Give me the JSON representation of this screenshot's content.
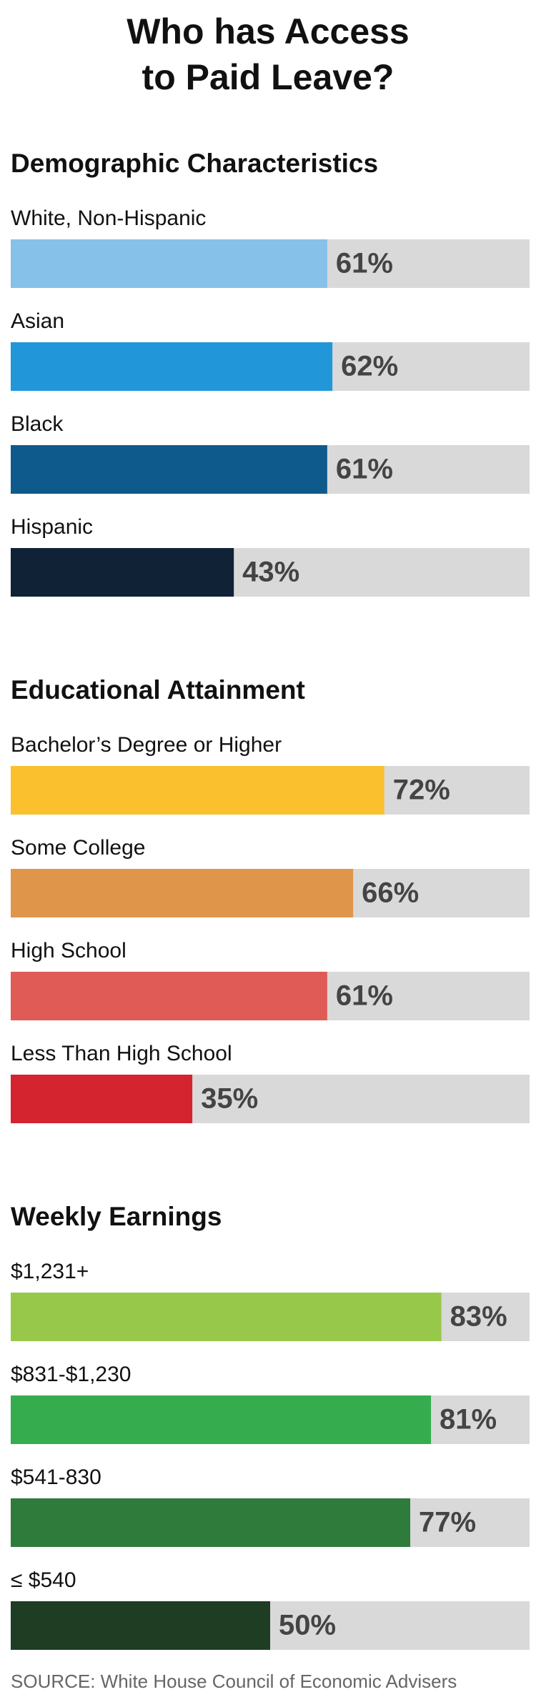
{
  "title": "Who has Access to Paid Leave?",
  "chart_data": [
    {
      "type": "bar",
      "title": "Demographic Characteristics",
      "categories": [
        "White, Non-Hispanic",
        "Asian",
        "Black",
        "Hispanic"
      ],
      "values": [
        61,
        62,
        61,
        43
      ],
      "value_labels": [
        "61%",
        "62%",
        "61%",
        "43%"
      ],
      "colors": [
        "#85c1e9",
        "#2196d9",
        "#0f5a8c",
        "#0f2236"
      ],
      "xlim": [
        0,
        100
      ]
    },
    {
      "type": "bar",
      "title": "Educational Attainment",
      "categories": [
        "Bachelor’s Degree or Higher",
        "Some College",
        "High School",
        "Less Than High School"
      ],
      "values": [
        72,
        66,
        61,
        35
      ],
      "value_labels": [
        "72%",
        "66%",
        "61%",
        "35%"
      ],
      "colors": [
        "#fbc02d",
        "#e0964a",
        "#e05a56",
        "#d32430"
      ],
      "xlim": [
        0,
        100
      ]
    },
    {
      "type": "bar",
      "title": "Weekly Earnings",
      "categories": [
        "$1,231+",
        "$831-$1,230",
        "$541-830",
        "≤ $540"
      ],
      "values": [
        83,
        81,
        77,
        50
      ],
      "value_labels": [
        "83%",
        "81%",
        "77%",
        "50%"
      ],
      "colors": [
        "#97c84a",
        "#35ad4e",
        "#2e7b3b",
        "#1e3d22"
      ],
      "xlim": [
        0,
        100
      ]
    }
  ],
  "source": "SOURCE: White House Council of Economic Advisers"
}
